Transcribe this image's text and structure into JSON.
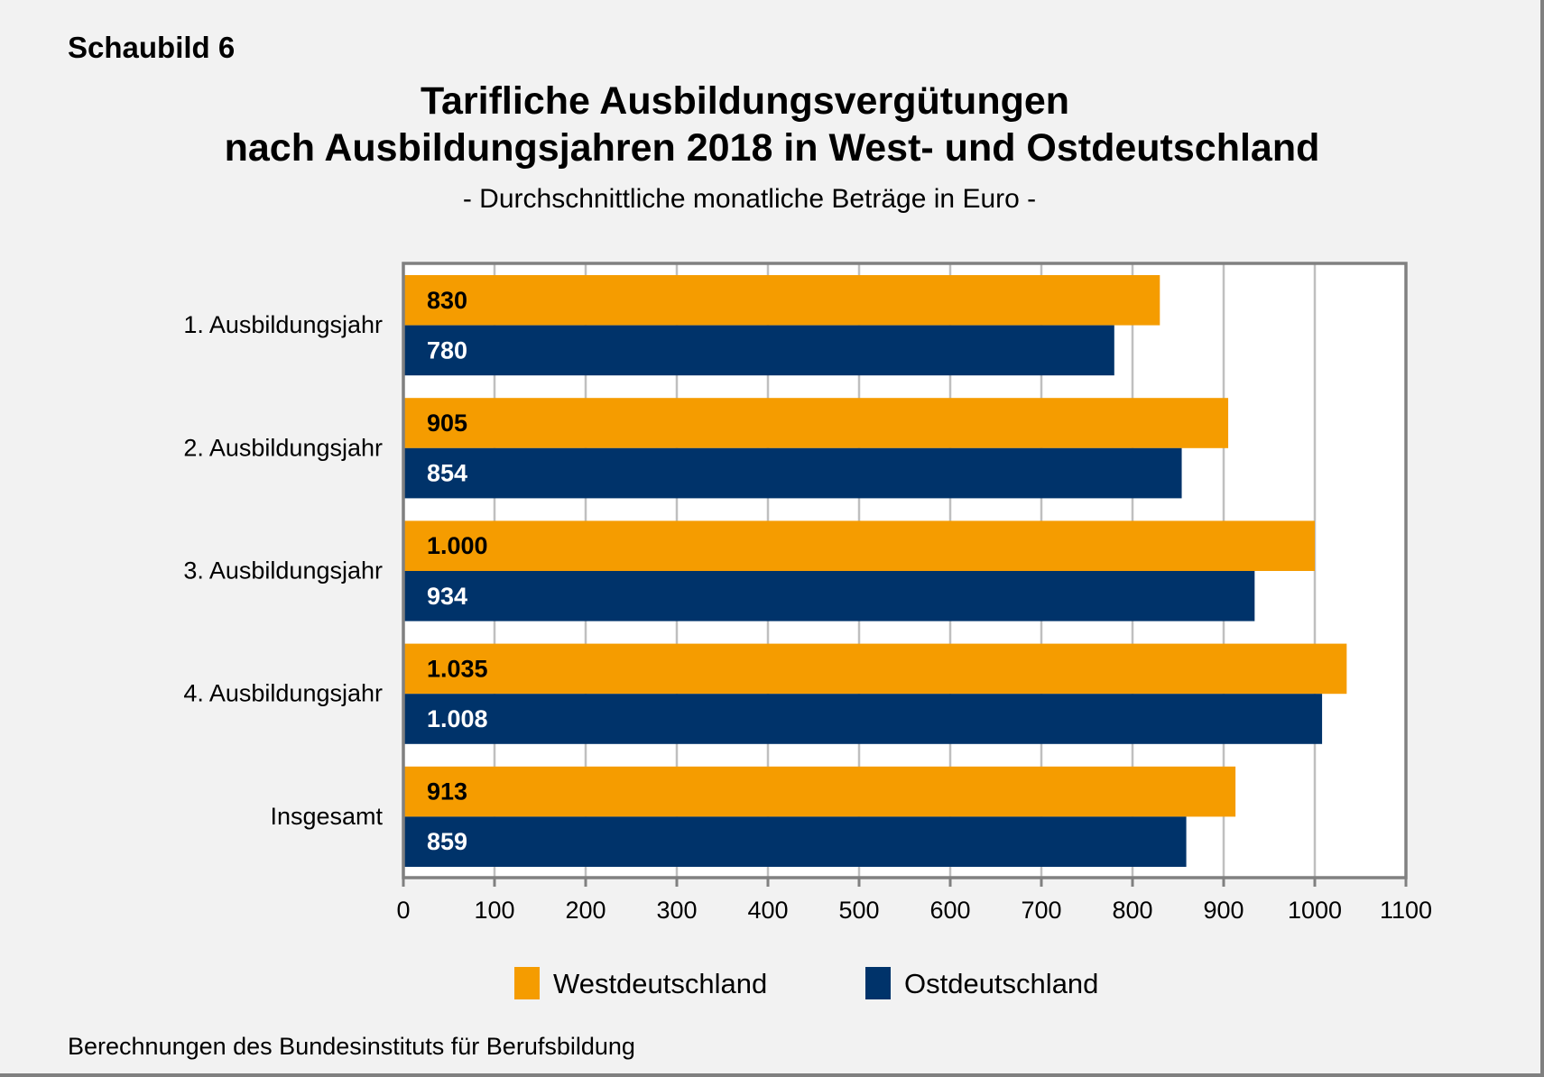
{
  "figure_label": "Schaubild 6",
  "source_note": "Berechnungen des Bundesinstituts für Berufsbildung",
  "colors": {
    "west": "#F59C00",
    "east": "#00336A",
    "grid": "#BFBFBF",
    "axis": "#808080",
    "plot_bg": "#FFFFFF",
    "page_bg": "#F2F2F2"
  },
  "chart_data": {
    "type": "bar",
    "orientation": "horizontal",
    "title": "Tarifliche Ausbildungsvergütungen",
    "title_line2": "nach Ausbildungsjahren 2018 in West- und Ostdeutschland",
    "subtitle": "- Durchschnittliche monatliche Beträge in Euro -",
    "xlabel": "",
    "ylabel": "",
    "categories": [
      "1. Ausbildungsjahr",
      "2. Ausbildungsjahr",
      "3. Ausbildungsjahr",
      "4. Ausbildungsjahr",
      "Insgesamt"
    ],
    "series": [
      {
        "name": "Westdeutschland",
        "color": "#F59C00",
        "values": [
          830,
          905,
          1000,
          1035,
          913
        ],
        "labels": [
          "830",
          "905",
          "1.000",
          "1.035",
          "913"
        ]
      },
      {
        "name": "Ostdeutschland",
        "color": "#00336A",
        "values": [
          780,
          854,
          934,
          1008,
          859
        ],
        "labels": [
          "780",
          "854",
          "934",
          "1.008",
          "859"
        ]
      }
    ],
    "xlim": [
      0,
      1100
    ],
    "xticks": [
      0,
      100,
      200,
      300,
      400,
      500,
      600,
      700,
      800,
      900,
      1000,
      1100
    ],
    "grid": true,
    "legend_position": "bottom-center"
  }
}
